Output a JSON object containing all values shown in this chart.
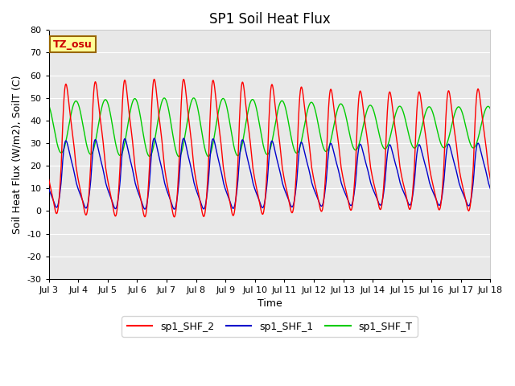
{
  "title": "SP1 Soil Heat Flux",
  "ylabel": "Soil Heat Flux (W/m2), SoilT (C)",
  "xlabel": "Time",
  "ylim": [
    -30,
    80
  ],
  "xlim_start": 3.0,
  "xlim_end": 18.0,
  "xtick_positions": [
    3,
    4,
    5,
    6,
    7,
    8,
    9,
    10,
    11,
    12,
    13,
    14,
    15,
    16,
    17,
    18
  ],
  "xtick_labels": [
    "Jul 3",
    "Jul 4",
    "Jul 5",
    "Jul 6",
    "Jul 7",
    "Jul 8",
    "Jul 9",
    "Jul 10",
    "Jul 11",
    "Jul 12",
    "Jul 13",
    "Jul 14",
    "Jul 15",
    "Jul 16",
    "Jul 17",
    "Jul 18"
  ],
  "ytick_positions": [
    -30,
    -20,
    -10,
    0,
    10,
    20,
    30,
    40,
    50,
    60,
    70,
    80
  ],
  "color_shf2": "#ff0000",
  "color_shf1": "#0000cc",
  "color_shft": "#00cc00",
  "legend_labels": [
    "sp1_SHF_2",
    "sp1_SHF_1",
    "sp1_SHF_T"
  ],
  "annotation_text": "TZ_osu",
  "annotation_bg": "#ffff99",
  "annotation_border": "#996600",
  "background_color": "#e8e8e8",
  "grid_color": "#ffffff",
  "title_fontsize": 12,
  "axis_label_fontsize": 9,
  "tick_label_fontsize": 8,
  "legend_fontsize": 9
}
